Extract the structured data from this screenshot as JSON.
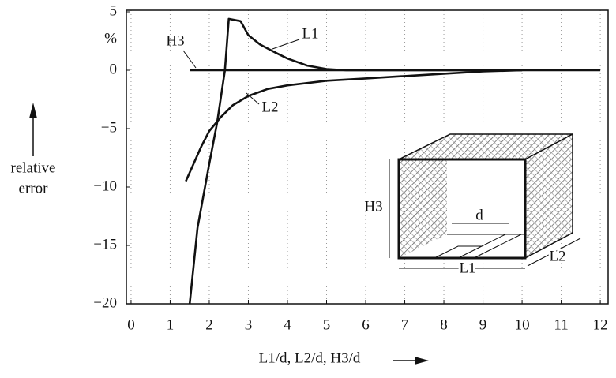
{
  "chart_data": {
    "type": "line",
    "y_unit": "%",
    "y_label": [
      "relative",
      "error"
    ],
    "x_label": "L1/d, L2/d,  H3/d",
    "xlim": [
      -0.12,
      12.2
    ],
    "xticks": [
      0,
      1,
      2,
      3,
      4,
      5,
      6,
      7,
      8,
      9,
      10,
      11,
      12
    ],
    "ylim": [
      -20,
      5
    ],
    "yticks": [
      {
        "value": -20,
        "label": "−20"
      },
      {
        "value": -15,
        "label": "−15"
      },
      {
        "value": -10,
        "label": "−10"
      },
      {
        "value": -5,
        "label": "−5"
      },
      0,
      5
    ],
    "grid": true,
    "series": [
      {
        "name": "L1",
        "color": "#111111",
        "x": [
          1.5,
          1.7,
          2.0,
          2.2,
          2.4,
          2.5,
          2.8,
          3.0,
          3.3,
          3.7,
          4.0,
          4.5,
          5.0,
          5.5,
          10.0
        ],
        "values": [
          -20,
          -13.5,
          -8,
          -4.5,
          0,
          4.4,
          4.2,
          3,
          2.2,
          1.5,
          1,
          0.4,
          0.1,
          0,
          0
        ]
      },
      {
        "name": "L2",
        "color": "#111111",
        "x": [
          1.4,
          1.6,
          1.8,
          2.0,
          2.3,
          2.6,
          3.0,
          3.5,
          4.0,
          5.0,
          6.0,
          7.0,
          8.0,
          9.0,
          10.0
        ],
        "values": [
          -9.5,
          -8,
          -6.5,
          -5.2,
          -4,
          -3,
          -2.2,
          -1.6,
          -1.3,
          -0.9,
          -0.7,
          -0.5,
          -0.3,
          -0.1,
          0
        ]
      },
      {
        "name": "H3",
        "color": "#111111",
        "x": [
          1.5,
          12.0
        ],
        "values": [
          0,
          0
        ]
      }
    ],
    "inset": {
      "h3": "H3",
      "d": "d",
      "l1": "L1",
      "l2": "L2"
    }
  }
}
